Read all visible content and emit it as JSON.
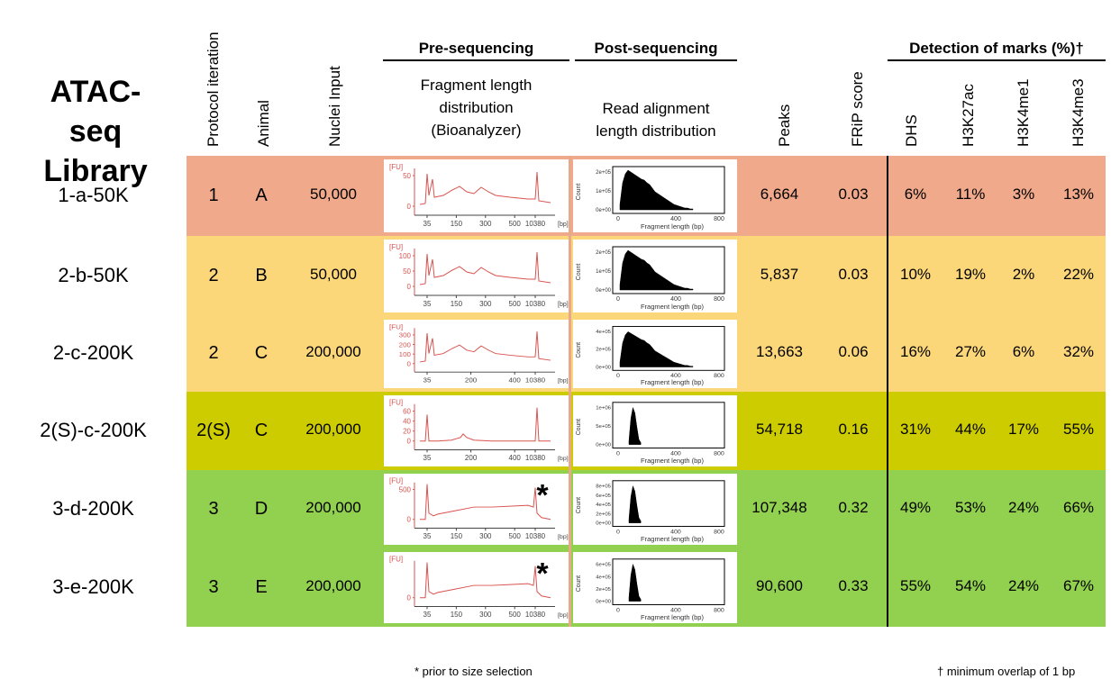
{
  "table": {
    "library_title_line1": "ATAC-seq",
    "library_title_line2": "Library",
    "headers": {
      "protocol": "Protocol iteration",
      "animal": "Animal",
      "nuclei": "Nuclei Input",
      "pre_group": "Pre-sequencing",
      "post_group": "Post-sequencing",
      "fragment_line1": "Fragment length",
      "fragment_line2": "distribution",
      "fragment_line3": "(Bioanalyzer)",
      "read_line1": "Read alignment",
      "read_line2": "length distribution",
      "peaks": "Peaks",
      "frip": "FRiP score",
      "marks_group": "Detection of marks (%)†",
      "dhs": "DHS",
      "h3k27ac": "H3K27ac",
      "h3k4me1": "H3K4me1",
      "h3k4me3": "H3K4me3"
    },
    "rows": [
      {
        "library": "1-a-50K",
        "protocol": "1",
        "animal": "A",
        "nuclei": "50,000",
        "peaks": "6,664",
        "frip": "0.03",
        "dhs": "6%",
        "h3k27ac": "11%",
        "h3k4me1": "3%",
        "h3k4me3": "13%",
        "color": "#f0a98a",
        "bio_ticks": [
          "50",
          "0"
        ],
        "bio_x": [
          "35",
          "150",
          "300",
          "500",
          "10380"
        ],
        "star": "",
        "hist_ticks": [
          "2e+05",
          "1e+05",
          "0e+00"
        ]
      },
      {
        "library": "2-b-50K",
        "protocol": "2",
        "animal": "B",
        "nuclei": "50,000",
        "peaks": "5,837",
        "frip": "0.03",
        "dhs": "10%",
        "h3k27ac": "19%",
        "h3k4me1": "2%",
        "h3k4me3": "22%",
        "color": "#fcd77a",
        "bio_ticks": [
          "100",
          "50",
          "0"
        ],
        "bio_x": [
          "35",
          "150",
          "300",
          "500",
          "10380"
        ],
        "star": "",
        "hist_ticks": [
          "2e+05",
          "1e+05",
          "0e+00"
        ]
      },
      {
        "library": "2-c-200K",
        "protocol": "2",
        "animal": "C",
        "nuclei": "200,000",
        "peaks": "13,663",
        "frip": "0.06",
        "dhs": "16%",
        "h3k27ac": "27%",
        "h3k4me1": "6%",
        "h3k4me3": "32%",
        "color": "#fcd77a",
        "bio_ticks": [
          "300",
          "200",
          "100",
          "0"
        ],
        "bio_x": [
          "35",
          "200",
          "400",
          "10380"
        ],
        "star": "",
        "hist_ticks": [
          "4e+05",
          "2e+05",
          "0e+00"
        ]
      },
      {
        "library": "2(S)-c-200K",
        "protocol": "2(S)",
        "animal": "C",
        "nuclei": "200,000",
        "peaks": "54,718",
        "frip": "0.16",
        "dhs": "31%",
        "h3k27ac": "44%",
        "h3k4me1": "17%",
        "h3k4me3": "55%",
        "color": "#cccc00",
        "bio_ticks": [
          "60",
          "40",
          "20",
          "0"
        ],
        "bio_x": [
          "35",
          "200",
          "400",
          "10380"
        ],
        "star": "",
        "hist_ticks": [
          "1e+06",
          "5e+05",
          "0e+00"
        ]
      },
      {
        "library": "3-d-200K",
        "protocol": "3",
        "animal": "D",
        "nuclei": "200,000",
        "peaks": "107,348",
        "frip": "0.32",
        "dhs": "49%",
        "h3k27ac": "53%",
        "h3k4me1": "24%",
        "h3k4me3": "66%",
        "color": "#92d050",
        "bio_ticks": [
          "500",
          "0"
        ],
        "bio_x": [
          "35",
          "150",
          "300",
          "500",
          "10380"
        ],
        "star": "*",
        "hist_ticks": [
          "8e+05",
          "6e+05",
          "4e+05",
          "2e+05",
          "0e+00"
        ]
      },
      {
        "library": "3-e-200K",
        "protocol": "3",
        "animal": "E",
        "nuclei": "200,000",
        "peaks": "90,600",
        "frip": "0.33",
        "dhs": "55%",
        "h3k27ac": "54%",
        "h3k4me1": "24%",
        "h3k4me3": "67%",
        "color": "#92d050",
        "bio_ticks": [
          "0"
        ],
        "bio_x": [
          "35",
          "150",
          "300",
          "500",
          "10380"
        ],
        "star": "*",
        "hist_ticks": [
          "6e+05",
          "4e+05",
          "2e+05",
          "0e+00"
        ]
      }
    ],
    "thumb_labels": {
      "fu": "[FU]",
      "bp": "[bp]",
      "count": "Count",
      "fragment_axis": "Fragment length (bp)",
      "hist_x": [
        "0",
        "400",
        "800"
      ]
    },
    "footnote_left": "* prior to size selection",
    "footnote_right": "† minimum overlap of 1 bp"
  }
}
